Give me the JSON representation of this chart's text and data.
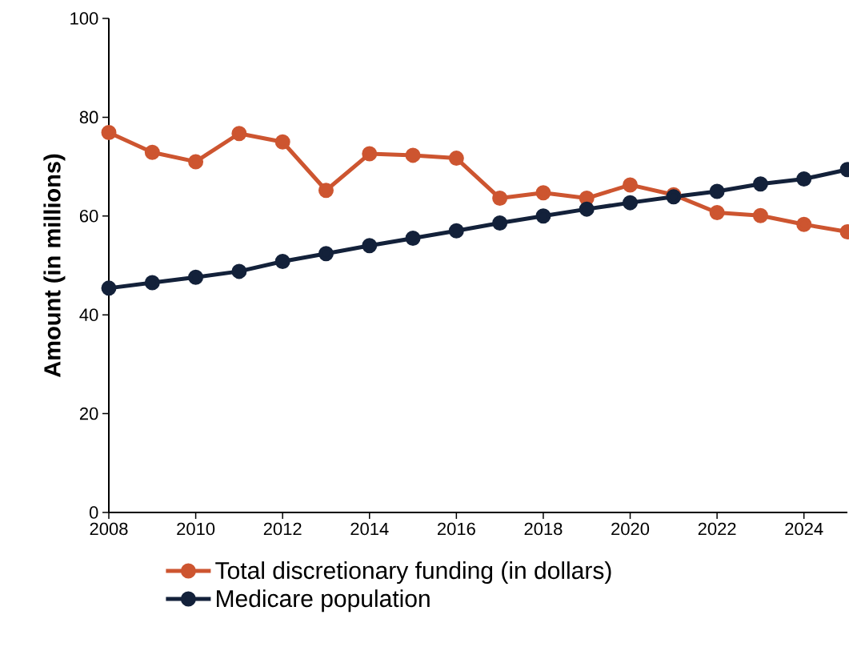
{
  "chart_data": {
    "type": "line",
    "ylabel": "Amount (in millions)",
    "x": [
      2008,
      2009,
      2010,
      2011,
      2012,
      2013,
      2014,
      2015,
      2016,
      2017,
      2018,
      2019,
      2020,
      2021,
      2022,
      2023,
      2024,
      2025
    ],
    "series": [
      {
        "name": "Total discretionary funding (in dollars)",
        "color": "#cd5530",
        "values": [
          76.9,
          72.9,
          71.0,
          76.7,
          75.0,
          65.2,
          72.6,
          72.3,
          71.7,
          63.6,
          64.7,
          63.6,
          66.3,
          64.3,
          60.7,
          60.1,
          58.3,
          56.8
        ]
      },
      {
        "name": "Medicare population",
        "color": "#13213a",
        "values": [
          45.4,
          46.5,
          47.6,
          48.8,
          50.8,
          52.4,
          54.0,
          55.5,
          57.0,
          58.6,
          60.0,
          61.4,
          62.7,
          63.9,
          65.0,
          66.5,
          67.5,
          69.4
        ]
      }
    ],
    "xlim": [
      2008,
      2025
    ],
    "xticks": [
      2008,
      2010,
      2012,
      2014,
      2016,
      2018,
      2020,
      2022,
      2024
    ],
    "ylim": [
      0,
      100
    ],
    "yticks": [
      0,
      20,
      40,
      60,
      80,
      100
    ],
    "grid": false,
    "legend": "bottom",
    "marker": "circle",
    "line_style": "solid"
  }
}
